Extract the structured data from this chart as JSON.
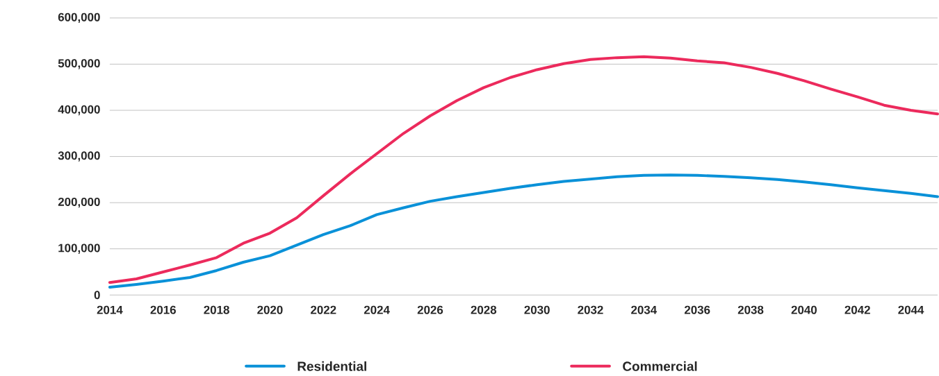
{
  "chart_data": {
    "type": "line",
    "x": [
      2014,
      2015,
      2016,
      2017,
      2018,
      2019,
      2020,
      2021,
      2022,
      2023,
      2024,
      2025,
      2026,
      2027,
      2028,
      2029,
      2030,
      2031,
      2032,
      2033,
      2034,
      2035,
      2036,
      2037,
      2038,
      2039,
      2040,
      2041,
      2042,
      2043,
      2044,
      2045
    ],
    "series": [
      {
        "name": "Residential",
        "color": "#0a91d8",
        "values": [
          17000,
          23000,
          30000,
          38000,
          53000,
          71000,
          85000,
          108000,
          131000,
          150000,
          174000,
          189000,
          203000,
          213000,
          222000,
          231000,
          239000,
          246000,
          251000,
          256000,
          259000,
          260000,
          259000,
          257000,
          254000,
          250000,
          245000,
          239000,
          232000,
          226000,
          220000,
          213000
        ]
      },
      {
        "name": "Commercial",
        "color": "#ec2a5c",
        "values": [
          27000,
          35000,
          50000,
          65000,
          81000,
          112000,
          134000,
          167000,
          215000,
          262000,
          306000,
          350000,
          388000,
          421000,
          449000,
          471000,
          488000,
          501000,
          510000,
          514000,
          516000,
          513000,
          507000,
          503000,
          493000,
          480000,
          464000,
          446000,
          429000,
          411000,
          400000,
          392000
        ]
      }
    ],
    "xlim": [
      2014,
      2045
    ],
    "xticks": [
      2014,
      2016,
      2018,
      2020,
      2022,
      2024,
      2026,
      2028,
      2030,
      2032,
      2034,
      2036,
      2038,
      2040,
      2042,
      2044
    ],
    "ylim": [
      0,
      600000
    ],
    "yticks": [
      {
        "value": 0,
        "label": "0"
      },
      {
        "value": 100000,
        "label": "100,000"
      },
      {
        "value": 200000,
        "label": "200,000"
      },
      {
        "value": 300000,
        "label": "300,000"
      },
      {
        "value": 400000,
        "label": "400,000"
      },
      {
        "value": 500000,
        "label": "500,000"
      },
      {
        "value": 600000,
        "label": "600,000"
      }
    ],
    "grid": "y",
    "legend": "bottom",
    "marker": "none",
    "line_style": "solid"
  }
}
